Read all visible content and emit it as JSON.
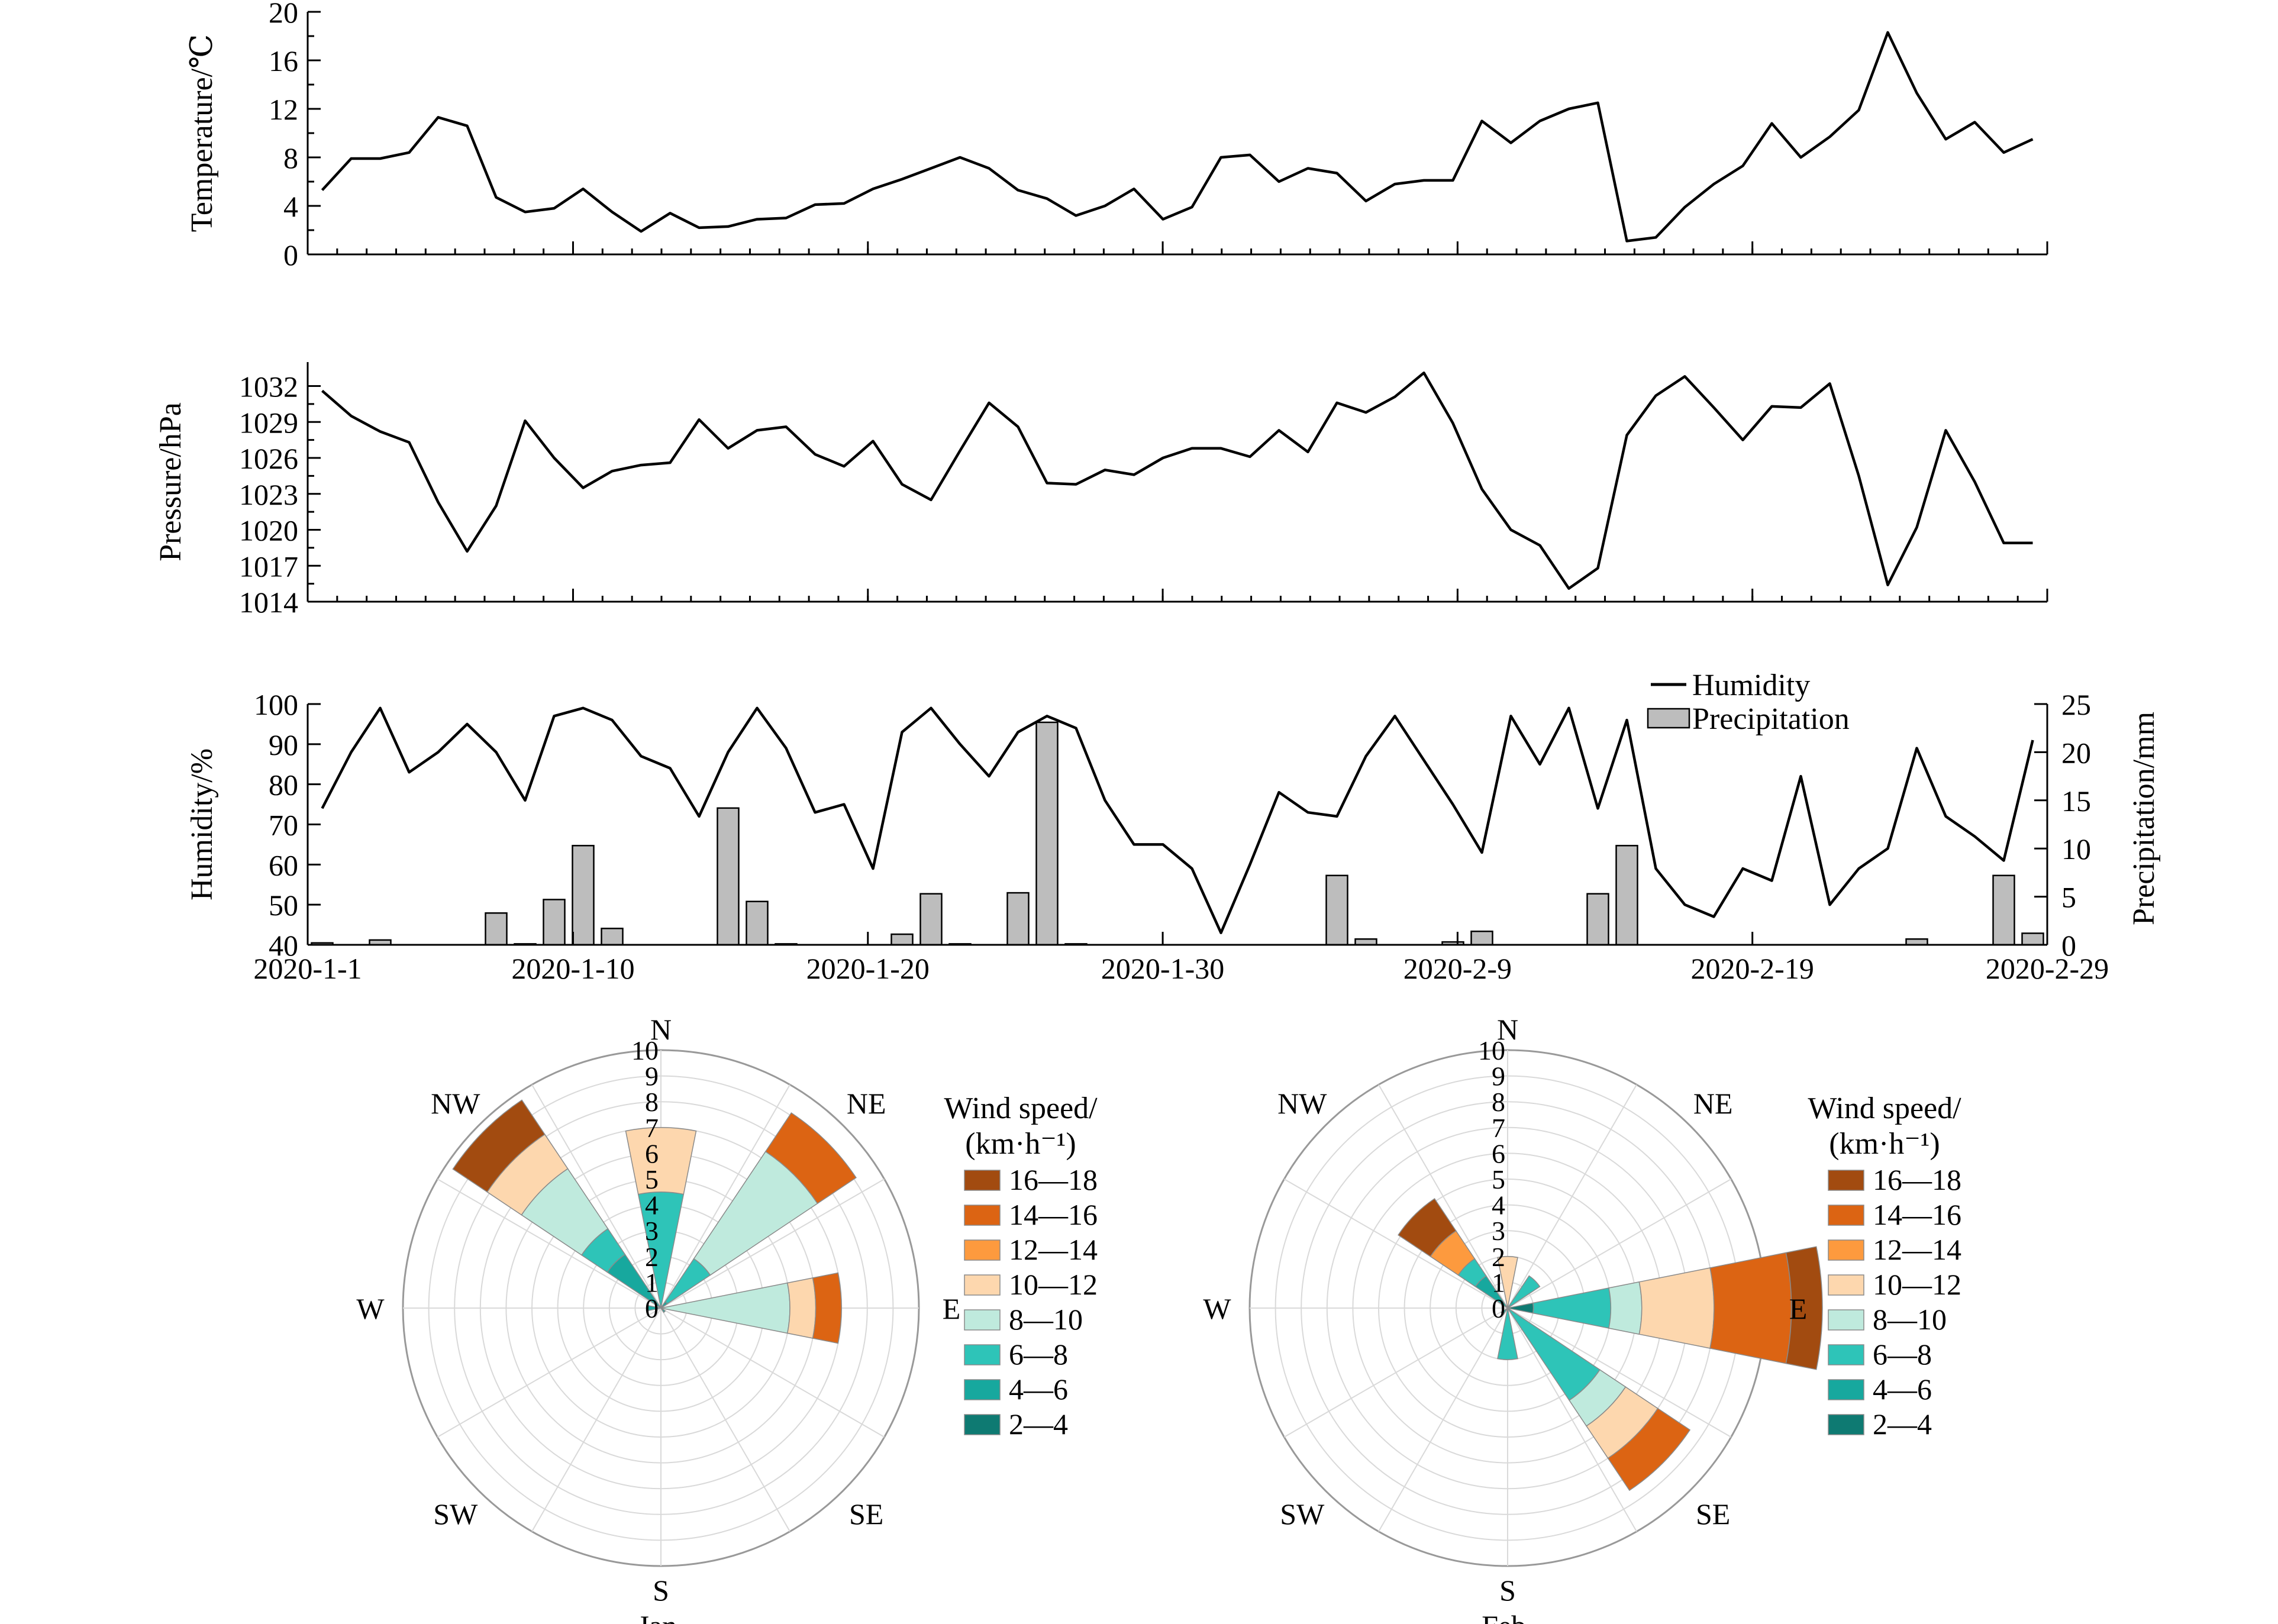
{
  "colors": {
    "bins": [
      "#0e7a72",
      "#17a89e",
      "#2ec4b8",
      "#bfeadd",
      "#fdd7ae",
      "#fd9a3e",
      "#dc6413",
      "#a24b10"
    ],
    "bar_fill": "#bdbdbd",
    "line": "#000000"
  },
  "chart_data": [
    {
      "type": "line",
      "ylabel": "Temperature/℃",
      "ylim": [
        0,
        20
      ],
      "yticks": [
        "0",
        "4",
        "8",
        "12",
        "16",
        "20"
      ],
      "x_start": "2020-1-1",
      "x_end": "2020-2-29",
      "series": [
        {
          "values": [
            5.3,
            7.9,
            7.9,
            8.4,
            11.3,
            10.6,
            4.7,
            3.5,
            3.8,
            5.4,
            3.5,
            1.9,
            3.4,
            2.2,
            2.3,
            2.9,
            3.0,
            4.1,
            4.2,
            5.4,
            6.2,
            7.1,
            8.0,
            7.1,
            5.3,
            4.6,
            3.2,
            4.0,
            5.4,
            2.9,
            3.9,
            8.0,
            8.2,
            6.0,
            7.1,
            6.7,
            4.4,
            5.8,
            6.1,
            6.1,
            11.0,
            9.2,
            11.0,
            12.0,
            12.5,
            1.1,
            1.4,
            3.9,
            5.8,
            7.3,
            10.8,
            8.0,
            9.7,
            11.9,
            18.3,
            13.3,
            9.5,
            10.9,
            8.4,
            9.5
          ]
        }
      ]
    },
    {
      "type": "line",
      "ylabel": "Pressure/hPa",
      "ylim": [
        1014,
        1034
      ],
      "yticks": [
        "1014",
        "1017",
        "1020",
        "1023",
        "1026",
        "1029",
        "1032"
      ],
      "x_start": "2020-1-1",
      "x_end": "2020-2-29",
      "series": [
        {
          "values": [
            1031.6,
            1029.5,
            1028.2,
            1027.3,
            1022.3,
            1018.2,
            1022.0,
            1029.1,
            1026.0,
            1023.5,
            1024.9,
            1025.4,
            1025.6,
            1029.2,
            1026.8,
            1028.3,
            1028.6,
            1026.3,
            1025.3,
            1027.4,
            1023.8,
            1022.5,
            1026.6,
            1030.6,
            1028.6,
            1023.9,
            1023.8,
            1025.0,
            1024.6,
            1026.0,
            1026.8,
            1026.8,
            1026.1,
            1028.3,
            1026.5,
            1030.6,
            1029.8,
            1031.1,
            1033.1,
            1028.9,
            1023.4,
            1020.0,
            1018.7,
            1015.1,
            1016.8,
            1027.9,
            1031.2,
            1032.8,
            1030.2,
            1027.5,
            1030.3,
            1030.2,
            1032.2,
            1024.5,
            1015.4,
            1020.2,
            1028.3,
            1024.0,
            1018.9,
            1018.9
          ]
        }
      ]
    },
    {
      "type": "bar+line",
      "ylabel": "Humidity/%",
      "y2label": "Precipitation/mm",
      "ylim": [
        40,
        100
      ],
      "yticks": [
        "40",
        "50",
        "60",
        "70",
        "80",
        "90",
        "100"
      ],
      "y2lim": [
        0,
        25
      ],
      "y2ticks": [
        "0",
        "5",
        "10",
        "15",
        "20",
        "25"
      ],
      "x_ticks": [
        "2020-1-1",
        "2020-1-10",
        "2020-1-20",
        "2020-1-30",
        "2020-2-9",
        "2020-2-19",
        "2020-2-29"
      ],
      "legend": [
        "Humidity",
        "Precipitation"
      ],
      "legend_position": "top-right",
      "humidity": [
        74,
        88,
        99,
        83,
        88,
        95,
        88,
        76,
        97,
        99,
        96,
        87,
        84,
        72,
        88,
        99,
        89,
        73,
        75,
        59,
        93,
        99,
        90,
        82,
        93,
        97,
        94,
        76,
        65,
        65,
        59,
        43,
        60,
        78,
        73,
        72,
        87,
        97,
        86,
        75,
        63,
        97,
        85,
        99,
        74,
        96,
        59,
        50,
        47,
        59,
        56,
        82,
        50,
        59,
        64,
        89,
        72,
        67,
        61,
        91
      ],
      "precipitation": [
        0.2,
        0.0,
        0.5,
        0.0,
        0.0,
        0.0,
        3.3,
        0.1,
        4.7,
        10.3,
        1.7,
        0.0,
        0.0,
        0.0,
        14.2,
        4.5,
        0.1,
        0.0,
        0.0,
        0.0,
        1.1,
        5.3,
        0.1,
        0.0,
        5.4,
        23.1,
        0.1,
        0.0,
        0.0,
        0.0,
        0.0,
        0.0,
        0.0,
        0.0,
        0.0,
        7.2,
        0.6,
        0.0,
        0.0,
        0.3,
        1.4,
        0.0,
        0.0,
        0.0,
        5.3,
        10.3,
        0.0,
        0.0,
        0.0,
        0.0,
        0.0,
        0.0,
        0.0,
        0.0,
        0.0,
        0.6,
        0.0,
        0.0,
        7.2,
        1.2
      ]
    },
    {
      "type": "wind-rose",
      "month_label": "Jan.",
      "directions": [
        "N",
        "NE",
        "E",
        "SE",
        "S",
        "SW",
        "W",
        "NW"
      ],
      "radial_ticks": [
        "0",
        "1",
        "2",
        "3",
        "4",
        "5",
        "6",
        "7",
        "8",
        "9",
        "10"
      ],
      "rmax": 10,
      "legend_title": "Wind speed/",
      "legend_unit": "(km·h⁻¹)",
      "bins": [
        "2—4",
        "4—6",
        "6—8",
        "8—10",
        "10—12",
        "12—14",
        "14—16",
        "16—18"
      ],
      "legend_order": [
        "16—18",
        "14—16",
        "12—14",
        "10—12",
        "8—10",
        "6—8",
        "4—6",
        "2—4"
      ],
      "frequencies": {
        "N": [
          0.0,
          0.0,
          4.5,
          0.0,
          2.5,
          0.0,
          0.0,
          0.0
        ],
        "NE": [
          0.0,
          0.3,
          2.0,
          5.0,
          0.0,
          0.0,
          1.8,
          0.0
        ],
        "E": [
          0.0,
          0.0,
          0.0,
          5.0,
          1.0,
          0.0,
          1.0,
          0.0
        ],
        "SE": [
          0.0,
          0.2,
          0.0,
          0.0,
          0.0,
          0.0,
          0.0,
          0.0
        ],
        "S": [
          0.0,
          0.0,
          0.0,
          0.0,
          0.0,
          0.0,
          0.0,
          0.0
        ],
        "SW": [
          0.0,
          0.0,
          0.0,
          0.0,
          0.0,
          0.0,
          0.0,
          0.0
        ],
        "W": [
          0.0,
          0.5,
          0.0,
          0.0,
          0.0,
          0.0,
          0.0,
          0.0
        ],
        "NW": [
          0.0,
          2.5,
          1.2,
          2.8,
          1.6,
          0.0,
          0.0,
          1.6
        ]
      }
    },
    {
      "type": "wind-rose",
      "month_label": "Feb.",
      "directions": [
        "N",
        "NE",
        "E",
        "SE",
        "S",
        "SW",
        "W",
        "NW"
      ],
      "radial_ticks": [
        "0",
        "1",
        "2",
        "3",
        "4",
        "5",
        "6",
        "7",
        "8",
        "9",
        "10"
      ],
      "rmax": 10,
      "legend_title": "Wind speed/",
      "legend_unit": "(km·h⁻¹)",
      "bins": [
        "2—4",
        "4—6",
        "6—8",
        "8—10",
        "10—12",
        "12—14",
        "14—16",
        "16—18"
      ],
      "legend_order": [
        "16—18",
        "14—16",
        "12—14",
        "10—12",
        "8—10",
        "6—8",
        "4—6",
        "2—4"
      ],
      "frequencies": {
        "N": [
          0.0,
          0.0,
          0.0,
          0.0,
          2.0,
          0.0,
          0.0,
          0.0
        ],
        "NE": [
          0.0,
          0.0,
          1.5,
          0.0,
          0.0,
          0.0,
          0.0,
          0.0
        ],
        "E": [
          1.0,
          0.0,
          3.0,
          1.2,
          2.8,
          0.0,
          3.0,
          1.2
        ],
        "SE": [
          0.0,
          0.0,
          4.3,
          1.2,
          1.5,
          0.0,
          1.5,
          0.0
        ],
        "S": [
          0.0,
          0.0,
          2.0,
          0.0,
          0.0,
          0.0,
          0.0,
          0.0
        ],
        "SW": [
          0.0,
          0.3,
          0.0,
          0.0,
          0.0,
          0.0,
          0.0,
          0.0
        ],
        "W": [
          0.0,
          0.0,
          0.0,
          0.0,
          0.0,
          0.0,
          0.0,
          0.0
        ],
        "NW": [
          0.0,
          1.5,
          0.8,
          0.0,
          0.0,
          1.3,
          0.0,
          1.5
        ]
      }
    }
  ]
}
